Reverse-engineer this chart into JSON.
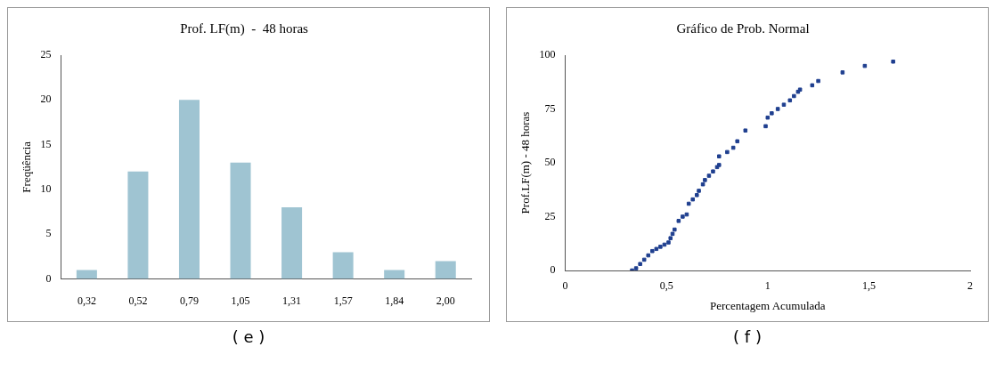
{
  "chart_data": [
    {
      "type": "bar",
      "title": "Prof. LF(m)  -  48 horas",
      "ylabel": "Freqüência",
      "categories": [
        "0,32",
        "0,52",
        "0,79",
        "1,05",
        "1,31",
        "1,57",
        "1,84",
        "2,00"
      ],
      "values": [
        1,
        12,
        20,
        13,
        8,
        3,
        1,
        2
      ],
      "color": "#9fc4d2",
      "ylim": [
        0,
        25
      ],
      "yticks": [
        0,
        5,
        10,
        15,
        20,
        25
      ],
      "grid": false,
      "legend": false,
      "annotations": [
        "( e )"
      ]
    },
    {
      "type": "scatter",
      "title": "Gráfico de Prob. Normal",
      "xlabel": "Percentagem Acumulada",
      "ylabel": "Prof.LF(m) - 48 horas",
      "marker": "square",
      "color": "#1f3f8f",
      "xlim": [
        0,
        2
      ],
      "xticks": [
        0,
        {
          "value": 0.5,
          "label": "0,5"
        },
        1,
        {
          "value": 1.5,
          "label": "1,5"
        },
        2
      ],
      "ylim": [
        0,
        100
      ],
      "yticks": [
        0,
        25,
        50,
        75,
        100
      ],
      "grid": false,
      "legend": false,
      "annotations": [
        "( f )"
      ],
      "x": [
        0.33,
        0.35,
        0.37,
        0.39,
        0.41,
        0.43,
        0.45,
        0.47,
        0.49,
        0.51,
        0.52,
        0.53,
        0.54,
        0.56,
        0.58,
        0.6,
        0.61,
        0.63,
        0.65,
        0.66,
        0.68,
        0.69,
        0.71,
        0.73,
        0.75,
        0.76,
        0.76,
        0.8,
        0.83,
        0.85,
        0.89,
        0.99,
        1.0,
        1.02,
        1.05,
        1.08,
        1.11,
        1.13,
        1.15,
        1.16,
        1.22,
        1.25,
        1.37,
        1.48,
        1.62
      ],
      "values": [
        0,
        1,
        3,
        5,
        7,
        9,
        10,
        11,
        12,
        13,
        15,
        17,
        19,
        23,
        25,
        26,
        31,
        33,
        35,
        37,
        40,
        42,
        44,
        46,
        48,
        49,
        53,
        55,
        57,
        60,
        65,
        67,
        71,
        73,
        75,
        77,
        79,
        81,
        83,
        84,
        86,
        88,
        92,
        95,
        97
      ]
    }
  ]
}
